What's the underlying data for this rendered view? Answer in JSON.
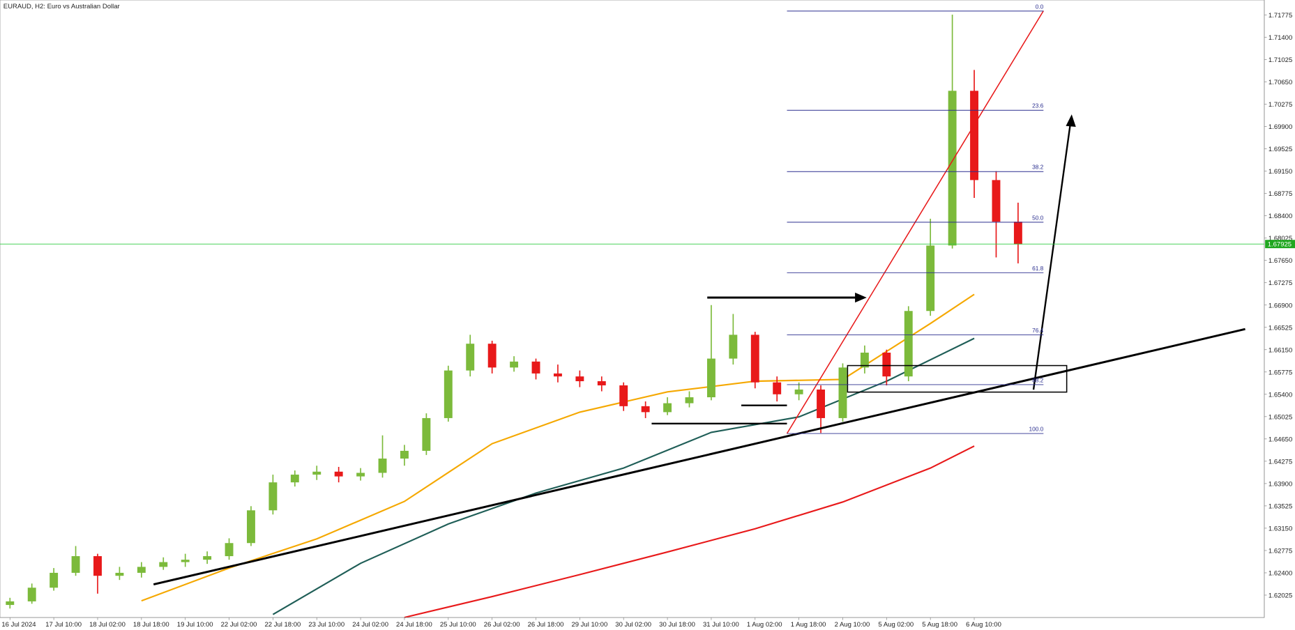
{
  "chart_data": {
    "type": "candlestick",
    "title": "EURAUD, H2:  Euro vs Australian Dollar",
    "categories": [
      "16 Jul 2024",
      null,
      "17 Jul 10:00",
      null,
      "18 Jul 02:00",
      null,
      "18 Jul 18:00",
      null,
      "19 Jul 10:00",
      null,
      "22 Jul 02:00",
      null,
      "22 Jul 18:00",
      null,
      "23 Jul 10:00",
      null,
      "24 Jul 02:00",
      null,
      "24 Jul 18:00",
      null,
      "25 Jul 10:00",
      null,
      "26 Jul 02:00",
      null,
      "26 Jul 18:00",
      null,
      "29 Jul 10:00",
      null,
      "30 Jul 02:00",
      null,
      "30 Jul 18:00",
      null,
      "31 Jul 10:00",
      null,
      "1 Aug 02:00",
      null,
      "1 Aug 18:00",
      null,
      "2 Aug 10:00",
      null,
      "5 Aug 02:00",
      null,
      "5 Aug 18:00",
      null,
      "6 Aug 10:00",
      null,
      null
    ],
    "open": [
      1.6186,
      1.6192,
      1.6215,
      1.624,
      1.6268,
      1.6235,
      1.624,
      1.625,
      1.6258,
      1.6262,
      1.6268,
      1.629,
      1.6345,
      1.6392,
      1.6405,
      1.641,
      1.6402,
      1.6408,
      1.6432,
      1.6445,
      1.65,
      1.658,
      1.6625,
      1.6585,
      1.6595,
      1.6575,
      1.657,
      1.6562,
      1.6555,
      1.652,
      1.651,
      1.6525,
      1.6535,
      1.66,
      1.664,
      1.656,
      1.654,
      1.6548,
      1.65,
      1.6585,
      1.661,
      1.657,
      1.668,
      1.679,
      1.705,
      1.69,
      1.683
    ],
    "high": [
      1.6198,
      1.6222,
      1.6248,
      1.6285,
      1.6272,
      1.625,
      1.6258,
      1.6266,
      1.6272,
      1.6276,
      1.6298,
      1.6352,
      1.6405,
      1.6412,
      1.642,
      1.6418,
      1.6416,
      1.6471,
      1.6455,
      1.6508,
      1.6588,
      1.664,
      1.663,
      1.6604,
      1.66,
      1.659,
      1.658,
      1.657,
      1.656,
      1.6528,
      1.6535,
      1.6545,
      1.669,
      1.6675,
      1.6645,
      1.657,
      1.656,
      1.6555,
      1.6592,
      1.6622,
      1.6615,
      1.6688,
      1.6835,
      1.7178,
      1.7085,
      1.6915,
      1.6862
    ],
    "low": [
      1.618,
      1.6188,
      1.621,
      1.6235,
      1.6205,
      1.6228,
      1.6232,
      1.6245,
      1.625,
      1.6255,
      1.6262,
      1.6285,
      1.6338,
      1.6385,
      1.6396,
      1.6392,
      1.6395,
      1.64,
      1.642,
      1.6438,
      1.6494,
      1.657,
      1.6575,
      1.6578,
      1.6565,
      1.656,
      1.6552,
      1.6545,
      1.6512,
      1.65,
      1.6505,
      1.6518,
      1.653,
      1.659,
      1.655,
      1.6528,
      1.653,
      1.6475,
      1.6494,
      1.6575,
      1.6555,
      1.6562,
      1.6672,
      1.6785,
      1.687,
      1.677,
      1.676
    ],
    "close": [
      1.6192,
      1.6215,
      1.624,
      1.6268,
      1.6235,
      1.624,
      1.625,
      1.6258,
      1.6262,
      1.6268,
      1.629,
      1.6345,
      1.6392,
      1.6405,
      1.641,
      1.6402,
      1.6408,
      1.6432,
      1.6445,
      1.65,
      1.658,
      1.6625,
      1.6585,
      1.6595,
      1.6575,
      1.657,
      1.6562,
      1.6555,
      1.652,
      1.651,
      1.6525,
      1.6535,
      1.66,
      1.664,
      1.656,
      1.654,
      1.6548,
      1.65,
      1.6585,
      1.661,
      1.657,
      1.668,
      1.679,
      1.705,
      1.69,
      1.683,
      1.6792
    ],
    "up_color": "#7cba3b",
    "down_color": "#e8191a",
    "moving_averages": [
      {
        "color": "#f5a800",
        "x": [
          6,
          10,
          14,
          18,
          22,
          26,
          30,
          34,
          38,
          42,
          44
        ],
        "values": [
          1.6193,
          1.6248,
          1.6297,
          1.636,
          1.6457,
          1.651,
          1.6544,
          1.6562,
          1.6565,
          1.6659,
          1.6708
        ]
      },
      {
        "color": "#1f5e57",
        "x": [
          12,
          16,
          20,
          24,
          28,
          32,
          36,
          40,
          44
        ],
        "values": [
          1.617,
          1.6256,
          1.6322,
          1.6374,
          1.6416,
          1.6476,
          1.6502,
          1.6562,
          1.6634
        ]
      },
      {
        "color": "#e8191a",
        "x": [
          18,
          22,
          26,
          30,
          34,
          38,
          42,
          44
        ],
        "values": [
          1.6165,
          1.62,
          1.6237,
          1.6275,
          1.6314,
          1.6359,
          1.6416,
          1.6453
        ]
      }
    ],
    "fib_levels": [
      {
        "label": "0.0",
        "price": 1.7184
      },
      {
        "label": "23.6",
        "price": 1.70173
      },
      {
        "label": "38.2",
        "price": 1.69142
      },
      {
        "label": "50.0",
        "price": 1.68292
      },
      {
        "label": "61.8",
        "price": 1.67443
      },
      {
        "label": "76.4",
        "price": 1.66398
      },
      {
        "label": "88.2",
        "price": 1.65562
      },
      {
        "label": "100.0",
        "price": 1.64741
      }
    ],
    "current_price": {
      "value": 1.67925,
      "label": "1.67925"
    },
    "ylim": [
      1.61648,
      1.72026
    ],
    "yticks": [
      1.62025,
      {
        "value": 1.624,
        "label": "1.62400"
      },
      1.62775,
      {
        "value": 1.6315,
        "label": "1.63150"
      },
      1.63525,
      {
        "value": 1.639,
        "label": "1.63900"
      },
      1.64275,
      {
        "value": 1.6465,
        "label": "1.64650"
      },
      1.65025,
      {
        "value": 1.654,
        "label": "1.65400"
      },
      1.65775,
      {
        "value": 1.6615,
        "label": "1.66150"
      },
      1.66525,
      {
        "value": 1.669,
        "label": "1.66900"
      },
      1.67275,
      {
        "value": 1.6765,
        "label": "1.67650"
      },
      1.68025,
      {
        "value": 1.684,
        "label": "1.68400"
      },
      1.68775,
      {
        "value": 1.6915,
        "label": "1.69150"
      },
      1.69525,
      {
        "value": 1.699,
        "label": "1.69900"
      },
      1.70275,
      {
        "value": 1.7065,
        "label": "1.70650"
      },
      1.71025,
      {
        "value": 1.714,
        "label": "1.71400"
      },
      1.71775
    ]
  }
}
